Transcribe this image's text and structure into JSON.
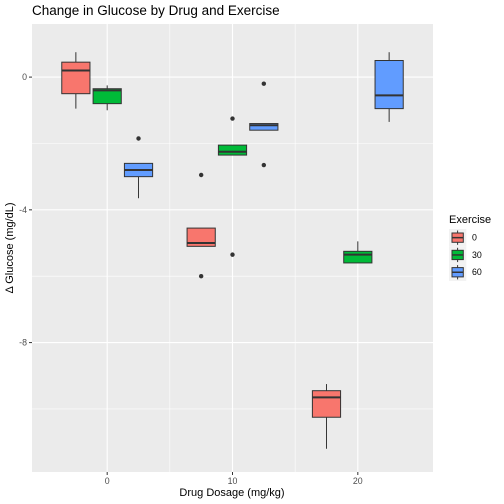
{
  "chart_data": {
    "type": "boxplot",
    "title": "Change in Glucose by Drug and Exercise",
    "xlabel": "Drug Dosage (mg/kg)",
    "ylabel": "Δ Glucose (mg/dL)",
    "x_ticks": [
      "0",
      "10",
      "20"
    ],
    "y_ticks": [
      "0",
      "-4",
      "-8"
    ],
    "xlim": [
      -6.0,
      26.0
    ],
    "ylim": [
      -11.9,
      1.6
    ],
    "grid": true,
    "legend": {
      "title": "Exercise",
      "position": "right",
      "entries": [
        "0",
        "30",
        "60"
      ]
    },
    "colors": {
      "0": "#F8766D",
      "30": "#00BA38",
      "60": "#619CFF"
    },
    "background": "#EBEBEB",
    "boxes": [
      {
        "dose": 0,
        "exercise": "0",
        "whisker_low": -0.95,
        "q1": -0.5,
        "median": 0.2,
        "q3": 0.45,
        "whisker_high": 0.75,
        "outliers": []
      },
      {
        "dose": 0,
        "exercise": "30",
        "whisker_low": -1.0,
        "q1": -0.8,
        "median": -0.4,
        "q3": -0.35,
        "whisker_high": -0.25,
        "outliers": []
      },
      {
        "dose": 0,
        "exercise": "60",
        "whisker_low": -3.65,
        "q1": -3.0,
        "median": -2.8,
        "q3": -2.6,
        "whisker_high": -2.6,
        "outliers": [
          -1.85
        ]
      },
      {
        "dose": 10,
        "exercise": "0",
        "whisker_low": -5.1,
        "q1": -5.1,
        "median": -5.0,
        "q3": -4.55,
        "whisker_high": -4.55,
        "outliers": [
          -2.95,
          -6.0
        ]
      },
      {
        "dose": 10,
        "exercise": "30",
        "whisker_low": -2.35,
        "q1": -2.35,
        "median": -2.25,
        "q3": -2.05,
        "whisker_high": -2.05,
        "outliers": [
          -1.25,
          -5.35
        ]
      },
      {
        "dose": 10,
        "exercise": "60",
        "whisker_low": -1.6,
        "q1": -1.6,
        "median": -1.45,
        "q3": -1.4,
        "whisker_high": -1.4,
        "outliers": [
          -0.2,
          -2.65
        ]
      },
      {
        "dose": 20,
        "exercise": "0",
        "whisker_low": -11.2,
        "q1": -10.25,
        "median": -9.65,
        "q3": -9.45,
        "whisker_high": -9.25,
        "outliers": []
      },
      {
        "dose": 20,
        "exercise": "30",
        "whisker_low": -5.6,
        "q1": -5.6,
        "median": -5.35,
        "q3": -5.25,
        "whisker_high": -4.95,
        "outliers": []
      },
      {
        "dose": 20,
        "exercise": "60",
        "whisker_low": -1.35,
        "q1": -0.95,
        "median": -0.55,
        "q3": 0.5,
        "whisker_high": 0.75,
        "outliers": []
      }
    ]
  }
}
